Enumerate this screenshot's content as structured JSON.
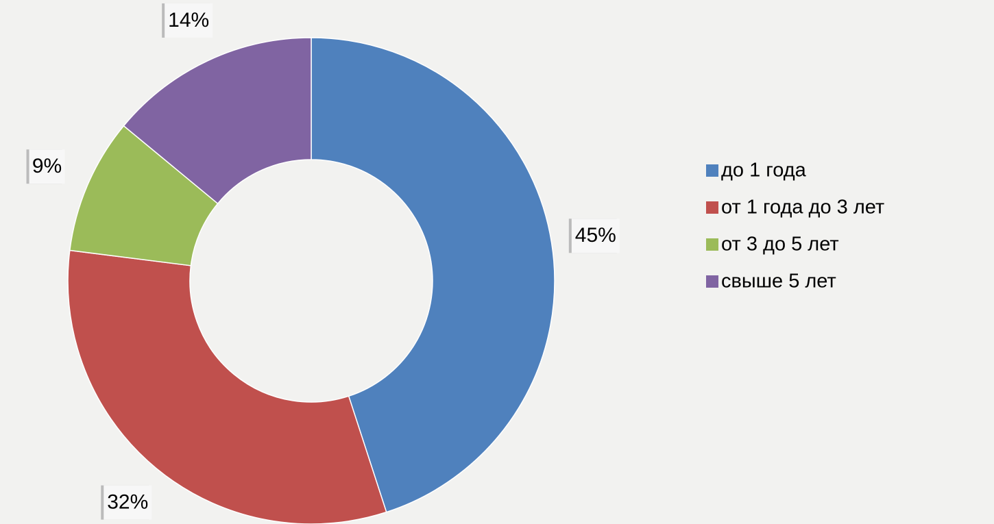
{
  "chart_data": {
    "type": "donut",
    "categories": [
      "до 1 года",
      "от 1 года до 3 лет",
      "от 3 до 5 лет",
      "свыше 5 лет"
    ],
    "values": [
      45,
      32,
      9,
      14
    ],
    "value_labels": [
      "45%",
      "32%",
      "9%",
      "14%"
    ],
    "colors": [
      "#4f81bd",
      "#c0504d",
      "#9bbb59",
      "#8064a2"
    ],
    "legend": "right"
  }
}
